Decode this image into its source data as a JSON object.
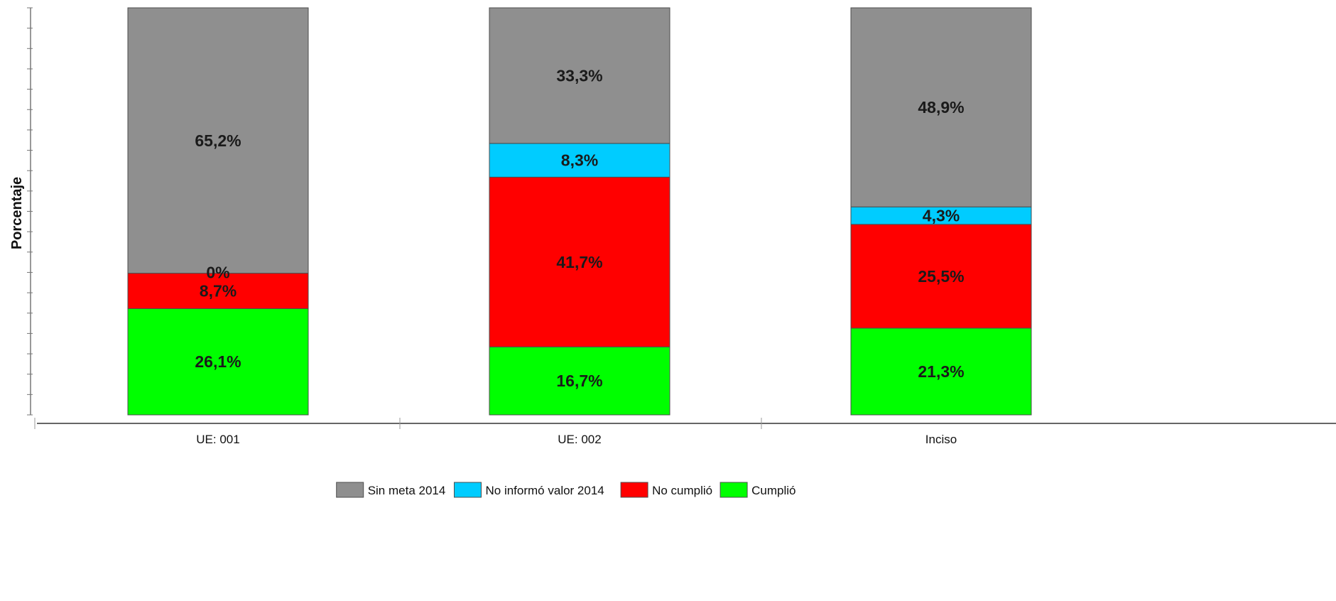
{
  "chart_data": {
    "type": "bar",
    "stacked": true,
    "orientation": "vertical",
    "ylabel": "Porcentaje",
    "xlabel": "",
    "title": "",
    "ylim": [
      0,
      100
    ],
    "categories": [
      "UE: 001",
      "UE: 002",
      "Inciso"
    ],
    "series": [
      {
        "name": "Cumplió",
        "color": "#00ff00",
        "values": [
          26.1,
          16.7,
          21.3
        ],
        "labels": [
          "26,1%",
          "16,7%",
          "21,3%"
        ]
      },
      {
        "name": "No cumplió",
        "color": "#ff0000",
        "values": [
          8.7,
          41.7,
          25.5
        ],
        "labels": [
          "8,7%",
          "41,7%",
          "25,5%"
        ]
      },
      {
        "name": "No informó valor 2014",
        "color": "#00ccff",
        "values": [
          0,
          8.3,
          4.3
        ],
        "labels": [
          "0%",
          "8,3%",
          "4,3%"
        ]
      },
      {
        "name": "Sin meta 2014",
        "color": "#8f8f8f",
        "values": [
          65.2,
          33.3,
          48.9
        ],
        "labels": [
          "65,2%",
          "33,3%",
          "48,9%"
        ]
      }
    ],
    "legend": {
      "position": "bottom",
      "order": [
        "Sin meta 2014",
        "No informó valor 2014",
        "No cumplió",
        "Cumplió"
      ]
    },
    "grid": false
  }
}
